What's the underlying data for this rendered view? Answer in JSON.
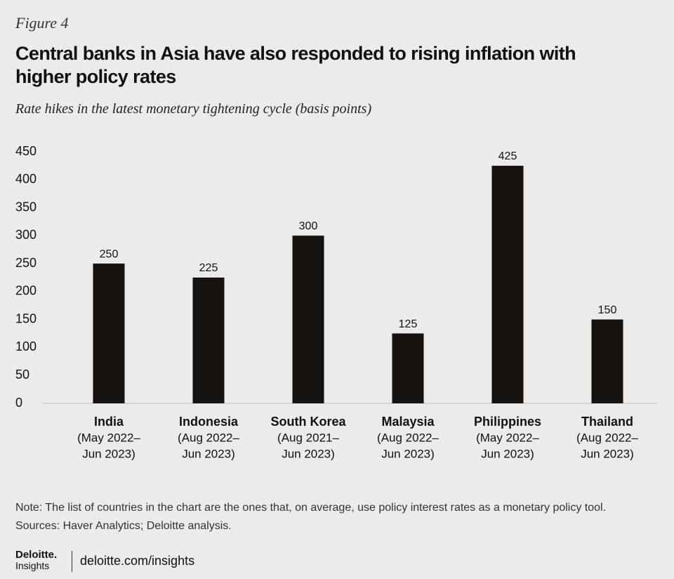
{
  "figure_label": "Figure 4",
  "chart_data": {
    "type": "bar",
    "title": "Central banks in Asia have also responded to rising inflation with higher policy rates",
    "subtitle": "Rate hikes in the latest monetary tightening cycle (basis points)",
    "categories": [
      "India",
      "Indonesia",
      "South Korea",
      "Malaysia",
      "Philippines",
      "Thailand"
    ],
    "category_periods": [
      [
        "(May 2022–",
        "Jun 2023)"
      ],
      [
        "(Aug 2022–",
        "Jun 2023)"
      ],
      [
        "(Aug 2021–",
        "Jun 2023)"
      ],
      [
        "(Aug 2022–",
        "Jun 2023)"
      ],
      [
        "(May 2022–",
        "Jun 2023)"
      ],
      [
        "(Aug 2022–",
        "Jun 2023)"
      ]
    ],
    "values": [
      250,
      225,
      300,
      125,
      425,
      150
    ],
    "color": "#15120f",
    "ylim": [
      0,
      450
    ],
    "yticks": [
      0,
      50,
      100,
      150,
      200,
      250,
      300,
      350,
      400,
      450
    ],
    "grid": false
  },
  "note": "Note: The list of countries in the chart are the ones that, on average, use policy interest rates as a monetary policy tool.",
  "source": "Sources: Haver Analytics; Deloitte analysis.",
  "footer": {
    "brand": "Deloitte.",
    "brand_sub": "Insights",
    "url": "deloitte.com/insights"
  }
}
